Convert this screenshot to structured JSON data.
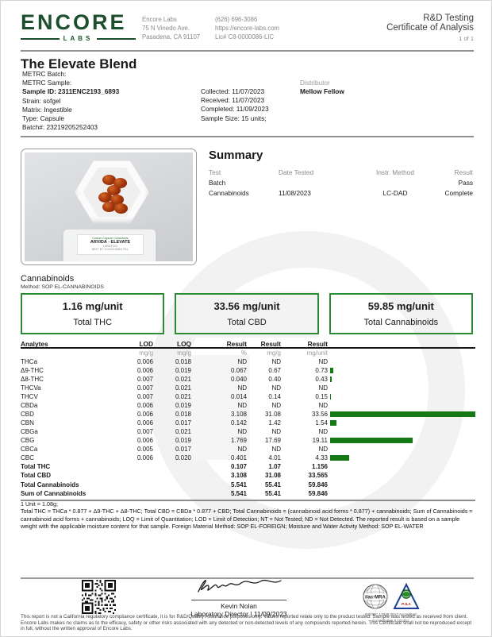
{
  "meta": {
    "page_label": "1 of 1"
  },
  "header": {
    "logo_text": "ENCORE",
    "logo_sub": "LABS",
    "lab_name": "Encore Labs",
    "address_line1": "75 N Vinedo Ave.",
    "address_line2": "Pasadena, CA 91107",
    "phone": "(626) 696-3086",
    "website": "https://encore-labs.com",
    "license": "Lic# C8-0000086-LIC",
    "doc_type": "R&D Testing",
    "doc_title": "Certificate of Analysis"
  },
  "product": {
    "name": "The Elevate Blend",
    "metrc_batch": "METRC Batch:",
    "metrc_sample": "METRC Sample:",
    "sample_id": "Sample ID: 2311ENC2193_6893",
    "strain": "Strain: sofgel",
    "matrix": "Matrix: Ingestible",
    "type": "Type: Capsule",
    "batch": "Batch#: 23219205252403",
    "collected": "Collected: 11/07/2023",
    "received": "Received: 11/07/2023",
    "completed": "Completed: 11/09/2023",
    "sample_size": "Sample Size: 15 units;",
    "distributor_label": "Distributor",
    "distributor_name": "Mellow Fellow"
  },
  "photo": {
    "bag_logo_line": "Custom Capsule Consultants",
    "bag_brand": "ARVIDA - ELEVATE",
    "bag_micro1": "L#830TV02",
    "bag_micro2": "BEST BY 11/2024   60MG PILL"
  },
  "summary": {
    "heading": "Summary",
    "col_test": "Test",
    "col_date": "Date Tested",
    "col_method": "Instr. Method",
    "col_result": "Result",
    "rows": [
      {
        "test": "Batch",
        "date": "",
        "method": "",
        "result": "Pass"
      },
      {
        "test": "Cannabinoids",
        "date": "11/08/2023",
        "method": "LC-DAD",
        "result": "Complete"
      }
    ]
  },
  "cannabinoids": {
    "heading": "Cannabinoids",
    "method": "Method: SOP EL-CANNABINOIDS",
    "totals_boxes": [
      {
        "value": "1.16 mg/unit",
        "label": "Total THC"
      },
      {
        "value": "33.56 mg/unit",
        "label": "Total CBD"
      },
      {
        "value": "59.85 mg/unit",
        "label": "Total Cannabinoids"
      }
    ],
    "table": {
      "headers": [
        "Analytes",
        "LOD",
        "LOQ",
        "Result",
        "Result",
        "Result"
      ],
      "units": [
        "",
        "mg/g",
        "mg/g",
        "%",
        "mg/g",
        "mg/unit"
      ],
      "rows": [
        {
          "analyte": "THCa",
          "lod": "0.006",
          "loq": "0.018",
          "pct": "ND",
          "mgg": "ND",
          "mgunit": "ND",
          "bar": 0
        },
        {
          "analyte": "Δ9-THC",
          "lod": "0.006",
          "loq": "0.019",
          "pct": "0.067",
          "mgg": "0.67",
          "mgunit": "0.73",
          "bar": 0.73
        },
        {
          "analyte": "Δ8-THC",
          "lod": "0.007",
          "loq": "0.021",
          "pct": "0.040",
          "mgg": "0.40",
          "mgunit": "0.43",
          "bar": 0.43
        },
        {
          "analyte": "THCVa",
          "lod": "0.007",
          "loq": "0.021",
          "pct": "ND",
          "mgg": "ND",
          "mgunit": "ND",
          "bar": 0
        },
        {
          "analyte": "THCV",
          "lod": "0.007",
          "loq": "0.021",
          "pct": "0.014",
          "mgg": "0.14",
          "mgunit": "0.15",
          "bar": 0.15
        },
        {
          "analyte": "CBDa",
          "lod": "0.006",
          "loq": "0.019",
          "pct": "ND",
          "mgg": "ND",
          "mgunit": "ND",
          "bar": 0
        },
        {
          "analyte": "CBD",
          "lod": "0.006",
          "loq": "0.018",
          "pct": "3.108",
          "mgg": "31.08",
          "mgunit": "33.56",
          "bar": 33.56
        },
        {
          "analyte": "CBN",
          "lod": "0.006",
          "loq": "0.017",
          "pct": "0.142",
          "mgg": "1.42",
          "mgunit": "1.54",
          "bar": 1.54
        },
        {
          "analyte": "CBGa",
          "lod": "0.007",
          "loq": "0.021",
          "pct": "ND",
          "mgg": "ND",
          "mgunit": "ND",
          "bar": 0
        },
        {
          "analyte": "CBG",
          "lod": "0.006",
          "loq": "0.019",
          "pct": "1.769",
          "mgg": "17.69",
          "mgunit": "19.11",
          "bar": 19.11
        },
        {
          "analyte": "CBCa",
          "lod": "0.005",
          "loq": "0.017",
          "pct": "ND",
          "mgg": "ND",
          "mgunit": "ND",
          "bar": 0
        },
        {
          "analyte": "CBC",
          "lod": "0.006",
          "loq": "0.020",
          "pct": "0.401",
          "mgg": "4.01",
          "mgunit": "4.33",
          "bar": 4.33
        }
      ],
      "total_rows": [
        {
          "analyte": "Total THC",
          "pct": "0.107",
          "mgg": "1.07",
          "mgunit": "1.156"
        },
        {
          "analyte": "Total CBD",
          "pct": "3.108",
          "mgg": "31.08",
          "mgunit": "33.565"
        },
        {
          "analyte": "Total Cannabinoids",
          "pct": "5.541",
          "mgg": "55.41",
          "mgunit": "59.846"
        },
        {
          "analyte": "Sum of Cannabinoids",
          "pct": "5.541",
          "mgg": "55.41",
          "mgunit": "59.846"
        }
      ]
    },
    "unit_note": "1 Unit = 1.08g;",
    "footnote": "Total THC = THCa * 0.877 + Δ9-THC + Δ8-THC; Total CBD = CBDa * 0.877 + CBD; Total Cannabinoids = (cannabinoid acid forms * 0.877) + cannabinoids; Sum of Cannabinoids = cannabinoid acid forms + cannabinoids; LOQ = Limit of Quantitation; LOD = Limit of Detection; NT = Not Tested; ND = Not Detected. The reported result is based on a sample weight with the applicable moisture content for that sample. Foreign Material Method: SOP EL-FOREIGN; Moisture and Water Activity Method: SOP EL-WATER"
  },
  "footer": {
    "signer_name": "Kevin Nolan",
    "signer_title": "Laboratory Director | 11/09/2023",
    "badge1_name": "ilac-MRA",
    "badge2_name": "PJLA",
    "accreditation_line1": "ISO/IEC 17025:2017 Accredited",
    "accreditation_line2": "Accreditation # 101411",
    "disclaimer": "This report is not a California regulatory compliance certificate, it is for R&D/Quality Assurance purposes only. Values reported relate only to the product tested. Sample was tested as received from client. Encore Labs makes no claims as to the efficacy, safety or other risks associated with any detected or non-detected levels of any compounds reported herein. This Certificate shall not be reproduced except in full, without the written approval of Encore Labs."
  },
  "colors": {
    "brand_green": "#1c4f2d",
    "box_border_green": "#2e8b35",
    "bar_green": "#157a15"
  }
}
